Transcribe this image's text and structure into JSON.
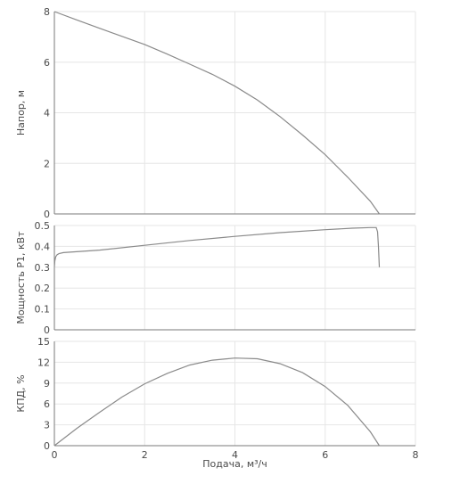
{
  "chart_data": [
    {
      "type": "line",
      "xlim": [
        0,
        8
      ],
      "xticks": [
        0,
        2,
        4,
        6,
        8
      ],
      "ylim": [
        0,
        8
      ],
      "yticks": [
        0,
        2,
        4,
        6,
        8
      ],
      "ylabel": "Напор, м",
      "grid": true,
      "series": [
        {
          "x": [
            0,
            0.5,
            1,
            1.5,
            2,
            2.5,
            3,
            3.5,
            4,
            4.5,
            5,
            5.5,
            6,
            6.5,
            7,
            7.2
          ],
          "y": [
            8.0,
            7.67,
            7.34,
            7.02,
            6.7,
            6.32,
            5.92,
            5.52,
            5.05,
            4.5,
            3.85,
            3.12,
            2.34,
            1.45,
            0.5,
            0.0
          ]
        }
      ]
    },
    {
      "type": "line",
      "xlim": [
        0,
        8
      ],
      "xticks": [
        0,
        2,
        4,
        6,
        8
      ],
      "ylim": [
        0,
        0.5
      ],
      "yticks": [
        "0",
        "0.1",
        "0.2",
        "0.3",
        "0.4",
        "0.5"
      ],
      "ylabel": "Мощность P1, кВт",
      "grid": true,
      "series": [
        {
          "x": [
            0,
            0.01,
            0.03,
            0.06,
            0.1,
            0.2,
            1,
            2,
            3,
            4,
            5,
            6,
            6.6,
            7.0,
            7.13,
            7.16,
            7.18,
            7.2
          ],
          "y": [
            0.3,
            0.33,
            0.35,
            0.36,
            0.365,
            0.37,
            0.382,
            0.405,
            0.428,
            0.448,
            0.466,
            0.48,
            0.487,
            0.49,
            0.49,
            0.47,
            0.4,
            0.3
          ]
        }
      ]
    },
    {
      "type": "line",
      "xlim": [
        0,
        8
      ],
      "xticks": [
        0,
        2,
        4,
        6,
        8
      ],
      "ylim": [
        0,
        15
      ],
      "yticks": [
        0,
        3,
        6,
        9,
        12,
        15
      ],
      "ylabel": "КПД, %",
      "xlabel": "Подача, м³/ч",
      "grid": true,
      "series": [
        {
          "x": [
            0,
            0.5,
            1,
            1.5,
            2,
            2.5,
            3,
            3.5,
            4,
            4.5,
            5,
            5.5,
            6,
            6.5,
            7,
            7.2
          ],
          "y": [
            0,
            2.5,
            4.8,
            7.0,
            8.9,
            10.4,
            11.6,
            12.3,
            12.6,
            12.5,
            11.8,
            10.5,
            8.5,
            5.8,
            2.0,
            0
          ]
        }
      ]
    }
  ]
}
